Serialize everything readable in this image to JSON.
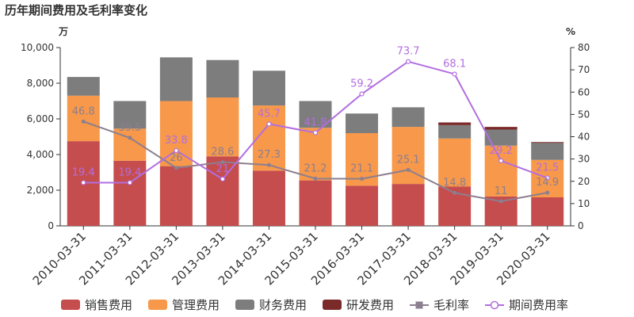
{
  "chart_data": {
    "type": "bar",
    "stacked": true,
    "title": "历年期间费用及毛利率变化",
    "left_axis_unit": "万",
    "right_axis_unit": "%",
    "ylim": [
      0,
      10000
    ],
    "y2lim": [
      0,
      80
    ],
    "yticks": [
      "0",
      "2,000",
      "4,000",
      "6,000",
      "8,000",
      "10,000"
    ],
    "y2ticks": [
      "0",
      "10",
      "20",
      "30",
      "40",
      "50",
      "60",
      "70",
      "80"
    ],
    "categories": [
      "2010-03-31",
      "2011-03-31",
      "2012-03-31",
      "2013-03-31",
      "2014-03-31",
      "2015-03-31",
      "2016-03-31",
      "2017-03-31",
      "2018-03-31",
      "2019-03-31",
      "2020-03-31"
    ],
    "series": [
      {
        "name": "销售费用",
        "kind": "bar",
        "color": "#c54d4d",
        "values": [
          4750,
          3650,
          3350,
          3900,
          3100,
          2550,
          2250,
          2350,
          2200,
          1650,
          1600
        ]
      },
      {
        "name": "管理费用",
        "kind": "bar",
        "color": "#f7984a",
        "values": [
          2550,
          1800,
          3650,
          3300,
          3650,
          2950,
          2950,
          3200,
          2700,
          2850,
          2100
        ]
      },
      {
        "name": "财务费用",
        "kind": "bar",
        "color": "#7d7d7d",
        "values": [
          1050,
          1550,
          2450,
          2100,
          1950,
          1500,
          1100,
          1100,
          750,
          900,
          950
        ]
      },
      {
        "name": "研发费用",
        "kind": "bar",
        "color": "#7b2a2a",
        "values": [
          0,
          0,
          0,
          0,
          0,
          0,
          0,
          0,
          150,
          150,
          50
        ]
      },
      {
        "name": "毛利率",
        "kind": "line",
        "axis": "right",
        "color": "#8c7f8f",
        "marker": "filled",
        "values": [
          46.8,
          39.5,
          26,
          28.6,
          27.3,
          21.2,
          21.1,
          25.1,
          14.8,
          11,
          14.9
        ],
        "labels": [
          "46.8",
          "39.5",
          "26",
          "28.6",
          "27.3",
          "21.2",
          "21.1",
          "25.1",
          "14.8",
          "11",
          "14.9"
        ]
      },
      {
        "name": "期间费用率",
        "kind": "line",
        "axis": "right",
        "color": "#b26ee0",
        "marker": "hollow",
        "values": [
          19.4,
          19.4,
          33.8,
          21,
          45.7,
          41.8,
          59.2,
          73.7,
          68.1,
          29.2,
          21.5
        ],
        "labels": [
          "19.4",
          "19.4",
          "33.8",
          "21",
          "45.7",
          "41.8",
          "59.2",
          "73.7",
          "68.1",
          "29.2",
          "21.5"
        ]
      }
    ],
    "legend_position": "bottom",
    "grid": false
  }
}
